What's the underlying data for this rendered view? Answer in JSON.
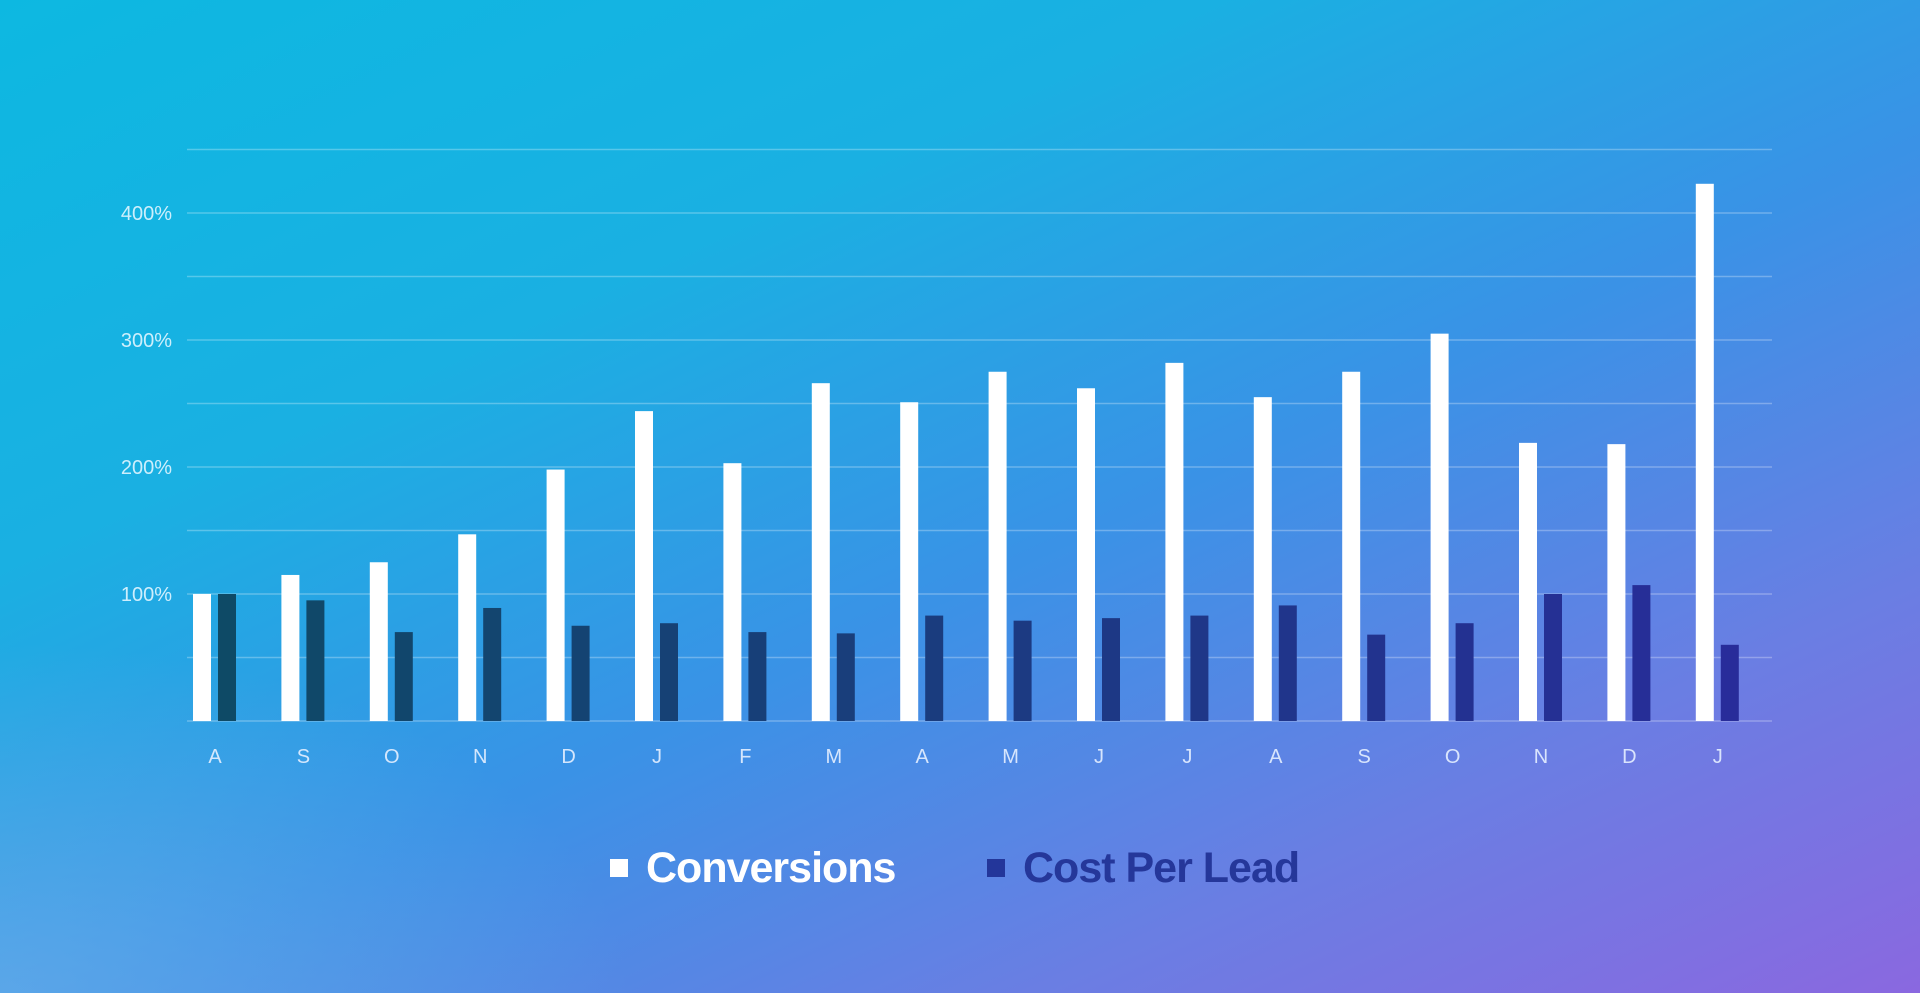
{
  "chart_data": {
    "type": "bar",
    "title": "",
    "xlabel": "",
    "ylabel": "",
    "categories": [
      "A",
      "S",
      "O",
      "N",
      "D",
      "J",
      "F",
      "M",
      "A",
      "M",
      "J",
      "J",
      "A",
      "S",
      "O",
      "N",
      "D",
      "J"
    ],
    "series": [
      {
        "name": "Conversions",
        "color": "#ffffff",
        "values": [
          100,
          115,
          125,
          147,
          198,
          244,
          203,
          266,
          251,
          275,
          262,
          282,
          255,
          275,
          305,
          219,
          218,
          423
        ]
      },
      {
        "name": "Cost Per Lead",
        "color": "#23369a",
        "color_start": "#0e4a66",
        "color_end": "#282c9a",
        "values": [
          100,
          95,
          70,
          89,
          75,
          77,
          70,
          69,
          83,
          79,
          81,
          83,
          91,
          68,
          77,
          100,
          107,
          60
        ]
      }
    ],
    "yticks": [
      100,
      200,
      300,
      400
    ],
    "ytick_labels": [
      "100%",
      "200%",
      "300%",
      "400%"
    ],
    "ylim": [
      0,
      450
    ],
    "grid": true,
    "grid_step": 50,
    "legend_position": "bottom-center"
  }
}
